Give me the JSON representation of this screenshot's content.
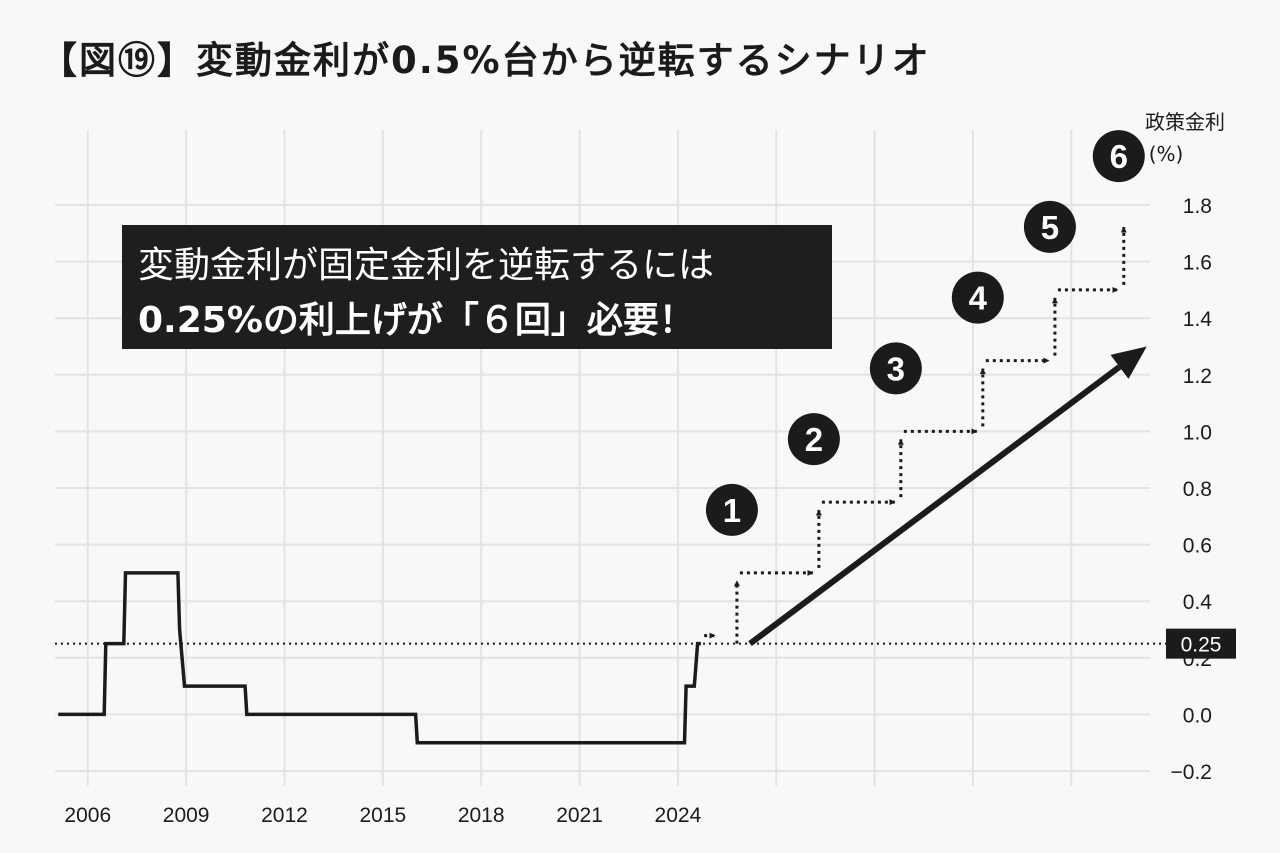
{
  "title": "【図⑲】変動金利が0.5%台から逆転するシナリオ",
  "callout": {
    "line1": "変動金利が固定金利を逆転するには",
    "line2": "0.25%の利上げが「６回」必要！"
  },
  "colors": {
    "background": "#f8f8f7",
    "grid": "#e3e3e3",
    "ink": "#1b1b1b",
    "callout_bg": "#1e1e1e"
  },
  "chart_data": {
    "type": "line",
    "ylabel": "政策金利",
    "yunit": "(%)",
    "xlim": [
      2005.0,
      2038.4
    ],
    "ylim": [
      -0.2,
      1.8
    ],
    "grid": true,
    "x_ticks": [
      2006,
      2009,
      2012,
      2015,
      2018,
      2021,
      2024
    ],
    "x_grid_extra": [
      2027,
      2030,
      2033,
      2036
    ],
    "y_ticks": [
      -0.2,
      0.0,
      0.2,
      0.4,
      0.6,
      0.8,
      1.0,
      1.2,
      1.4,
      1.6,
      1.8
    ],
    "y_tick_labels": [
      "−0.2",
      "0.0",
      "0.2",
      "0.4",
      "0.6",
      "0.8",
      "1.0",
      "1.2",
      "1.4",
      "1.6",
      "1.8"
    ],
    "series": [
      {
        "points": [
          [
            2005.1,
            0.0
          ],
          [
            2006.5,
            0.0
          ],
          [
            2006.55,
            0.25
          ],
          [
            2007.1,
            0.25
          ],
          [
            2007.15,
            0.5
          ],
          [
            2008.75,
            0.5
          ],
          [
            2008.8,
            0.3
          ],
          [
            2008.95,
            0.1
          ],
          [
            2010.8,
            0.1
          ],
          [
            2010.85,
            0.0
          ],
          [
            2016.0,
            0.0
          ],
          [
            2016.05,
            -0.1
          ],
          [
            2024.2,
            -0.1
          ],
          [
            2024.25,
            0.1
          ],
          [
            2024.5,
            0.1
          ],
          [
            2024.6,
            0.25
          ],
          [
            2024.7,
            0.25
          ]
        ]
      }
    ],
    "reference_line": {
      "value": 0.25,
      "label": "0.25"
    },
    "steps": [
      {
        "label": "1",
        "x": 2025.8,
        "from": 0.25,
        "to": 0.5
      },
      {
        "label": "2",
        "x": 2028.3,
        "from": 0.5,
        "to": 0.75
      },
      {
        "label": "3",
        "x": 2030.8,
        "from": 0.75,
        "to": 1.0
      },
      {
        "label": "4",
        "x": 2033.3,
        "from": 1.0,
        "to": 1.25
      },
      {
        "label": "5",
        "x": 2035.5,
        "from": 1.25,
        "to": 1.5
      },
      {
        "label": "6",
        "x": 2037.6,
        "from": 1.5,
        "to": 1.75
      }
    ],
    "trend_arrow": {
      "from": [
        2026.2,
        0.25
      ],
      "to": [
        2038.3,
        1.3
      ]
    }
  }
}
